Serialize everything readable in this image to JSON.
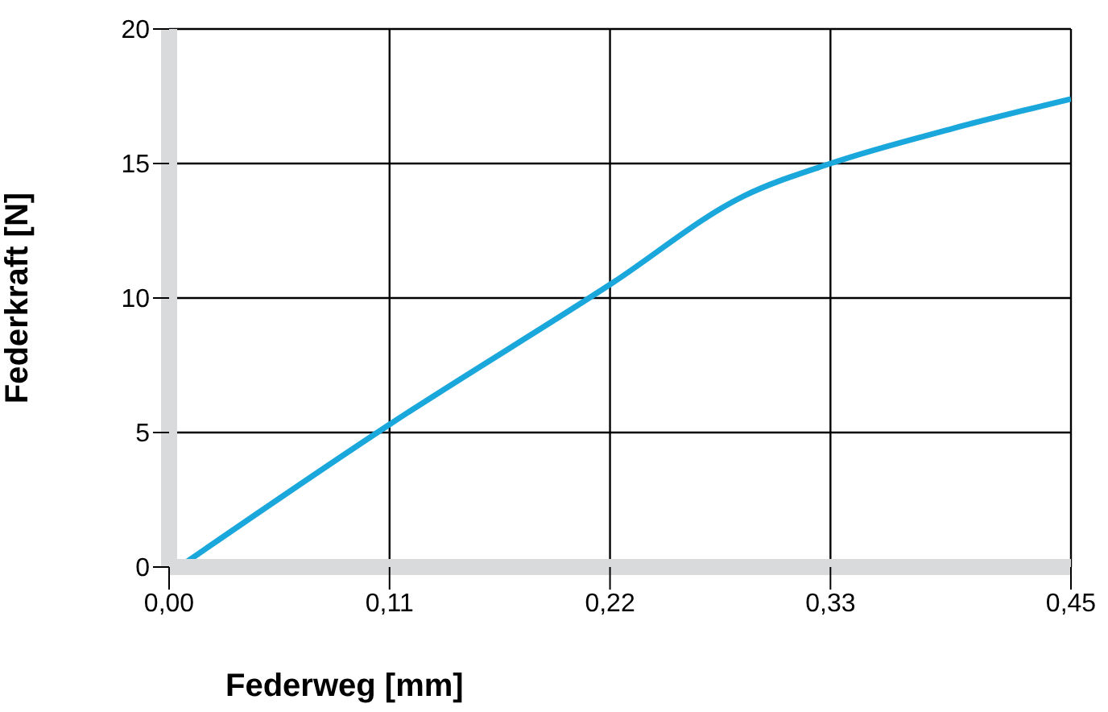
{
  "chart_data": {
    "type": "line",
    "xlabel": "Federweg [mm]",
    "ylabel": "Federkraft [N]",
    "x": [
      0.005,
      0.11,
      0.22,
      0.287,
      0.33,
      0.391,
      0.45
    ],
    "series": [
      {
        "color": "#1aa7dc",
        "values": [
          0,
          5.3,
          10.5,
          13.8,
          15.0,
          16.3,
          17.4
        ]
      }
    ],
    "xlim": [
      0,
      0.45
    ],
    "xticks": [
      {
        "value": 0,
        "label": "0,00"
      },
      {
        "value": 0.11,
        "label": "0,11"
      },
      {
        "value": 0.22,
        "label": "0,22"
      },
      {
        "value": 0.33,
        "label": "0,33"
      },
      {
        "value": 0.45,
        "label": "0,45"
      }
    ],
    "ylim": [
      0,
      20
    ],
    "yticks": [
      0,
      5,
      10,
      15,
      20
    ],
    "grid": true,
    "marker": "none",
    "line_style": "solid"
  }
}
